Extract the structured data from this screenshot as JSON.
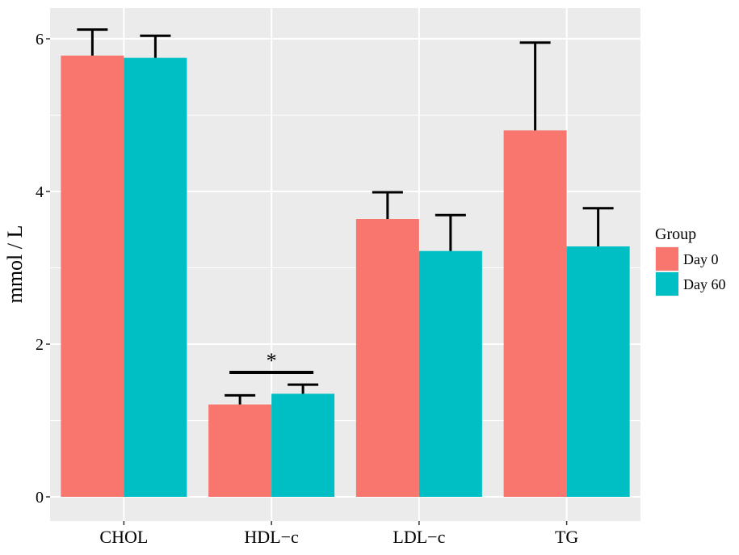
{
  "chart_data": {
    "type": "bar",
    "title": "",
    "xlabel": "",
    "ylabel": "mmol / L",
    "ylim": [
      0,
      6.35
    ],
    "yticks": [
      0,
      2,
      4,
      6
    ],
    "ytick_labels": [
      "0",
      "2",
      "4",
      "6"
    ],
    "grid": true,
    "categories": [
      "CHOL",
      "HDL−c",
      "LDL−c",
      "TG"
    ],
    "series": [
      {
        "name": "Day 0",
        "color": "#F8766D",
        "values": [
          5.78,
          1.21,
          3.64,
          4.8
        ],
        "error_upper": [
          6.12,
          1.33,
          3.99,
          5.95
        ]
      },
      {
        "name": "Day 60",
        "color": "#00BFC4",
        "values": [
          5.75,
          1.35,
          3.22,
          3.28
        ],
        "error_upper": [
          6.04,
          1.47,
          3.69,
          3.78
        ]
      }
    ],
    "legend": {
      "title": "Group",
      "position": "right"
    },
    "annotations": [
      {
        "text": "*",
        "category": "HDL−c",
        "y": 1.63
      }
    ],
    "panel_background": "#EBEBEB",
    "grid_color": "#FFFFFF"
  }
}
